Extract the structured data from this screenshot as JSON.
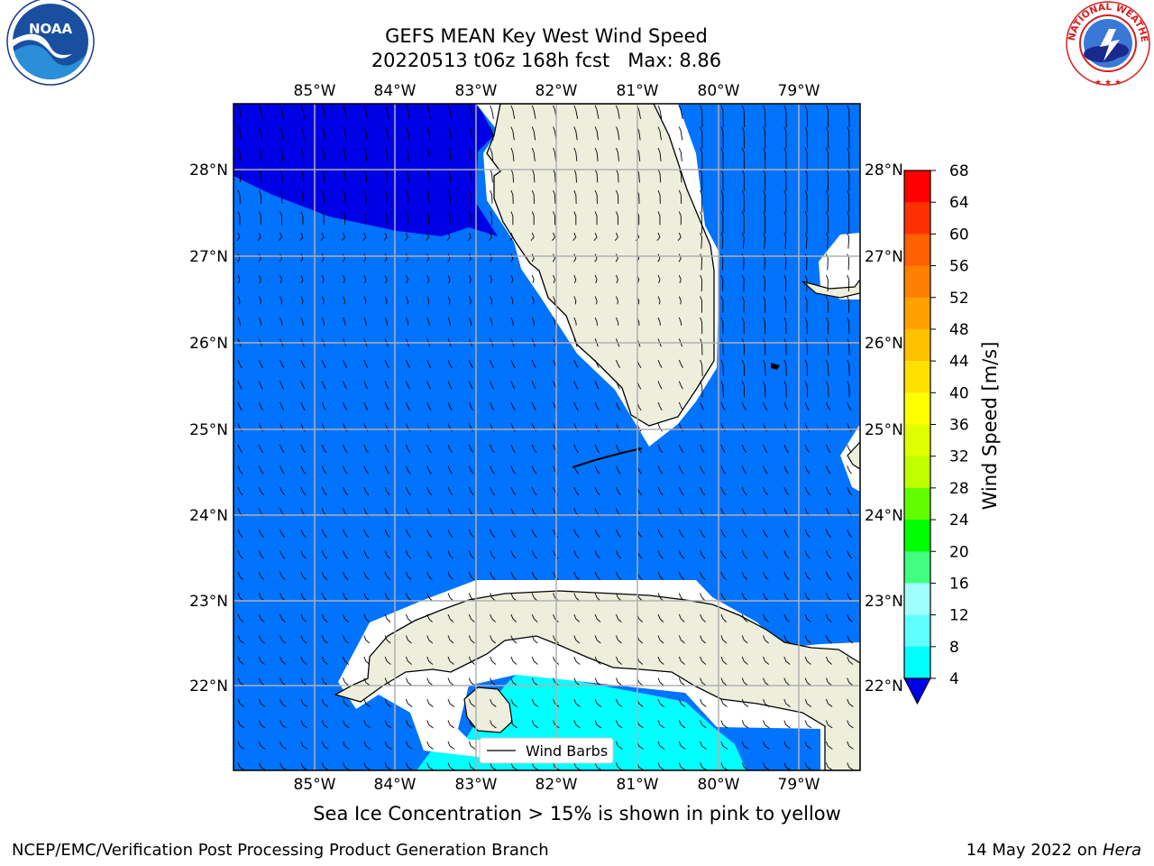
{
  "title": {
    "line1": "GEFS MEAN Key West Wind Speed",
    "line2": "20220513 t06z 168h fcst   Max: 8.86"
  },
  "logos": {
    "left": {
      "name": "noaa-logo",
      "text": "NOAA"
    },
    "right": {
      "name": "nws-logo",
      "ring_text": "NATIONAL WEATHER SERVICE"
    }
  },
  "map": {
    "lon_labels": [
      "85°W",
      "84°W",
      "83°W",
      "82°W",
      "81°W",
      "80°W",
      "79°W"
    ],
    "lat_labels": [
      "28°N",
      "27°N",
      "26°N",
      "25°N",
      "24°N",
      "23°N",
      "22°N"
    ],
    "legend_label": "Wind Barbs",
    "colors": {
      "ocean_4_8": "#0073ff",
      "ocean_below_4": "#0000e6",
      "ocean_8_12": "#00ffff",
      "land": "#eeeedd",
      "grid": "#b0b0b0",
      "coast": "#000000"
    }
  },
  "colorbar": {
    "label": "Wind Speed [m/s]",
    "ticks": [
      "68",
      "64",
      "60",
      "56",
      "52",
      "48",
      "44",
      "40",
      "36",
      "32",
      "28",
      "24",
      "20",
      "16",
      "12",
      "8",
      "4"
    ],
    "colors": [
      "#ff0000",
      "#ff3000",
      "#ff6000",
      "#ff8000",
      "#ffa000",
      "#ffc000",
      "#ffe000",
      "#ffff00",
      "#e0ff00",
      "#c0ff00",
      "#60ff00",
      "#00ff00",
      "#40ff80",
      "#a0ffff",
      "#60ffff",
      "#00ffff",
      "#0073ff"
    ],
    "under_color": "#0000e6"
  },
  "caption": "Sea Ice Concentration > 15% is shown in pink to yellow",
  "footer": {
    "left": "NCEP/EMC/Verification Post Processing Product Generation Branch",
    "right_prefix": "14 May 2022 on ",
    "right_machine": "Hera"
  }
}
